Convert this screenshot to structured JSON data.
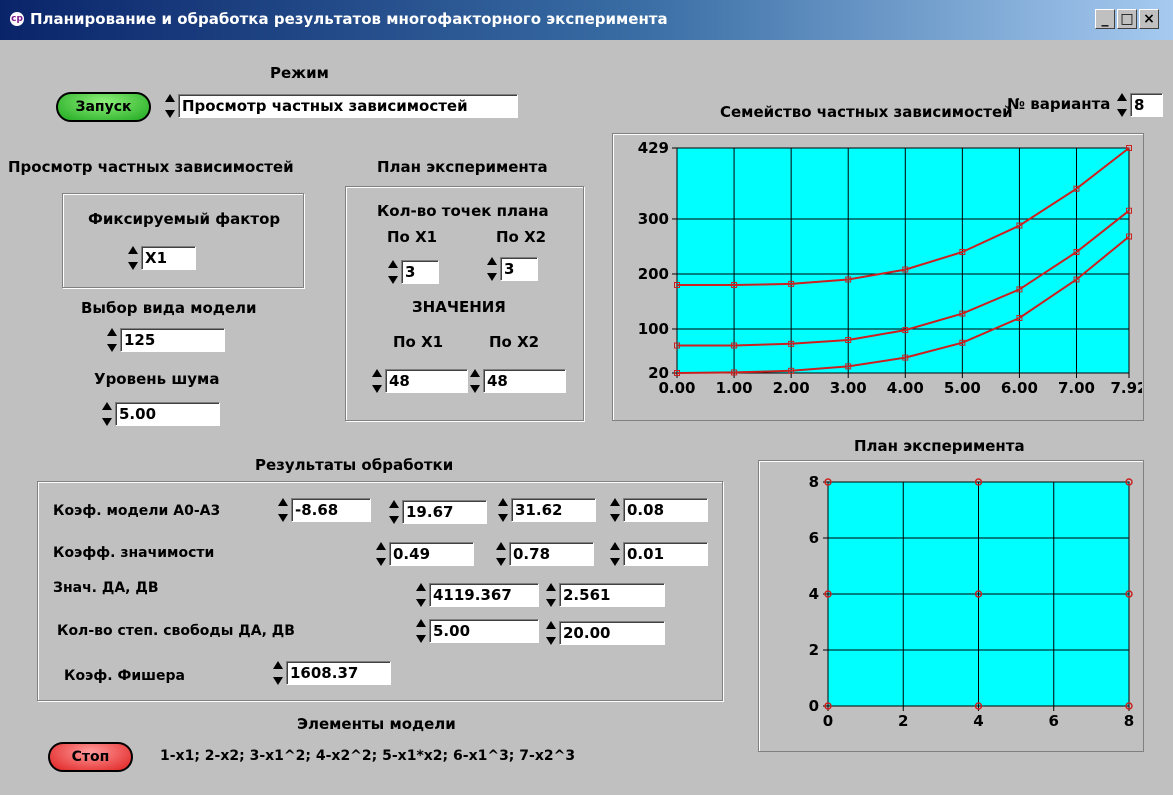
{
  "window": {
    "title": "Планирование и обработка результатов многофакторного эксперимента",
    "icon_text": "cp"
  },
  "mode": {
    "label": "Режим",
    "start_button": "Запуск",
    "value": "Просмотр частных зависимостей"
  },
  "variant": {
    "label": "№ варианта",
    "value": "8"
  },
  "partial_view": {
    "title": "Просмотр частных зависимостей",
    "fixed_factor_label": "Фиксируемый фактор",
    "fixed_factor_value": "X1",
    "model_type_label": "Выбор вида модели",
    "model_type_value": "125",
    "noise_label": "Уровень шума",
    "noise_value": "5.00"
  },
  "plan": {
    "title": "План эксперимента",
    "points_label": "Кол-во точек плана",
    "x1_label": "По X1",
    "x2_label": "По X2",
    "points_x1": "3",
    "points_x2": "3",
    "values_label": "ЗНАЧЕНИЯ",
    "values_x1_label": "По X1",
    "values_x2_label": "По X2",
    "values_x1": "48",
    "values_x2": "48"
  },
  "results": {
    "title": "Результаты обработки",
    "coef_label": "Коэф. модели А0-А3",
    "coefs": [
      "-8.68",
      "19.67",
      "31.62",
      "0.08"
    ],
    "signif_label": "Коэфф. значимости",
    "signif": [
      "0.49",
      "0.78",
      "0.01"
    ],
    "da_db_label": "Знач. ДА, ДВ",
    "da": "4119.367",
    "db": "2.561",
    "dof_label": "Кол-во степ. свободы ДА, ДВ",
    "dof_a": "5.00",
    "dof_b": "20.00",
    "fisher_label": "Коэф. Фишера",
    "fisher": "1608.37"
  },
  "model_elements": {
    "title": "Элементы модели",
    "text": "1-x1; 2-x2; 3-x1^2; 4-x2^2; 5-x1*x2; 6-x1^3; 7-x2^3"
  },
  "stop_button": "Стоп",
  "colors": {
    "plot_bg": "#00ffff",
    "curve": "#cc2020",
    "grid": "#000000"
  },
  "chart_data": [
    {
      "type": "line",
      "title": "Семейство частных зависимостей",
      "xlim": [
        0,
        7.92
      ],
      "ylim": [
        20,
        429
      ],
      "x_ticks": [
        "0.00",
        "1.00",
        "2.00",
        "3.00",
        "4.00",
        "5.00",
        "6.00",
        "7.00",
        "7.92"
      ],
      "y_ticks": [
        "20",
        "100",
        "200",
        "300",
        "429"
      ],
      "grid": true,
      "series": [
        {
          "x": [
            0,
            1,
            2,
            3,
            4,
            5,
            6,
            7,
            7.92
          ],
          "y": [
            180,
            180,
            182,
            190,
            208,
            240,
            288,
            355,
            429
          ]
        },
        {
          "x": [
            0,
            1,
            2,
            3,
            4,
            5,
            6,
            7,
            7.92
          ],
          "y": [
            70,
            70,
            73,
            80,
            98,
            128,
            172,
            240,
            315
          ]
        },
        {
          "x": [
            0,
            1,
            2,
            3,
            4,
            5,
            6,
            7,
            7.92
          ],
          "y": [
            20,
            21,
            24,
            32,
            48,
            75,
            120,
            190,
            268
          ]
        }
      ]
    },
    {
      "type": "scatter",
      "title": "План эксперимента",
      "xlim": [
        0,
        8
      ],
      "ylim": [
        0,
        8
      ],
      "x_ticks": [
        "0",
        "2",
        "4",
        "6",
        "8"
      ],
      "y_ticks": [
        "0",
        "2",
        "4",
        "6",
        "8"
      ],
      "grid": true,
      "points": [
        [
          0,
          0
        ],
        [
          4,
          0
        ],
        [
          8,
          0
        ],
        [
          0,
          4
        ],
        [
          4,
          4
        ],
        [
          8,
          4
        ],
        [
          0,
          8
        ],
        [
          4,
          8
        ],
        [
          8,
          8
        ]
      ]
    }
  ]
}
